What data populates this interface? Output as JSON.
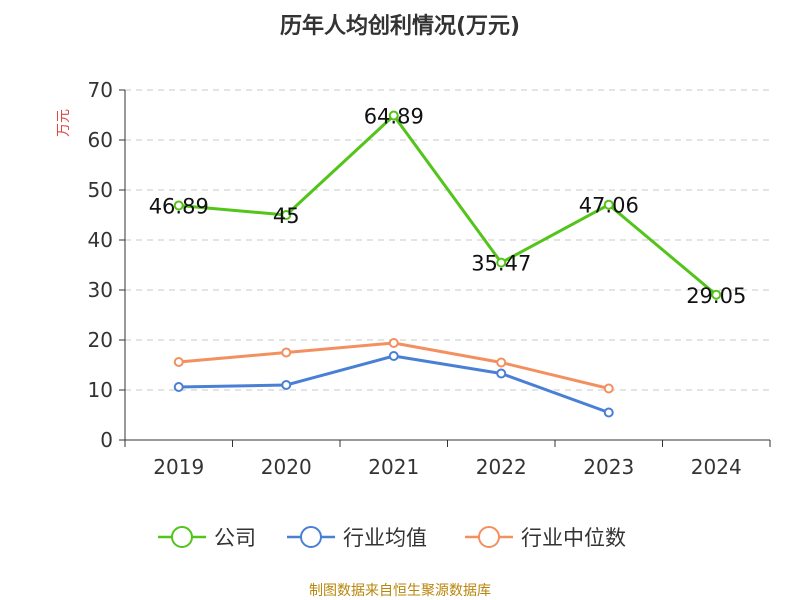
{
  "chart_data": {
    "type": "line",
    "title": "历年人均创利情况(万元)",
    "ylabel": "万元",
    "categories": [
      "2019",
      "2020",
      "2021",
      "2022",
      "2023",
      "2024"
    ],
    "ylim": [
      0,
      70
    ],
    "yticks": [
      0,
      10,
      20,
      30,
      40,
      50,
      60,
      70
    ],
    "grid": true,
    "legend_position": "bottom",
    "series": [
      {
        "name": "公司",
        "color": "#52c41a",
        "labels": true,
        "values": [
          46.89,
          45,
          64.89,
          35.47,
          47.06,
          29.05
        ],
        "value_labels": [
          "46.89",
          "45",
          "64.89",
          "35.47",
          "47.06",
          "29.05"
        ]
      },
      {
        "name": "行业均值",
        "color": "#4a7fd6",
        "labels": false,
        "values": [
          10.6,
          11.0,
          16.8,
          13.3,
          5.5,
          null
        ]
      },
      {
        "name": "行业中位数",
        "color": "#f39060",
        "labels": false,
        "values": [
          15.6,
          17.5,
          19.4,
          15.5,
          10.3,
          null
        ]
      }
    ]
  },
  "source": "制图数据来自恒生聚源数据库"
}
